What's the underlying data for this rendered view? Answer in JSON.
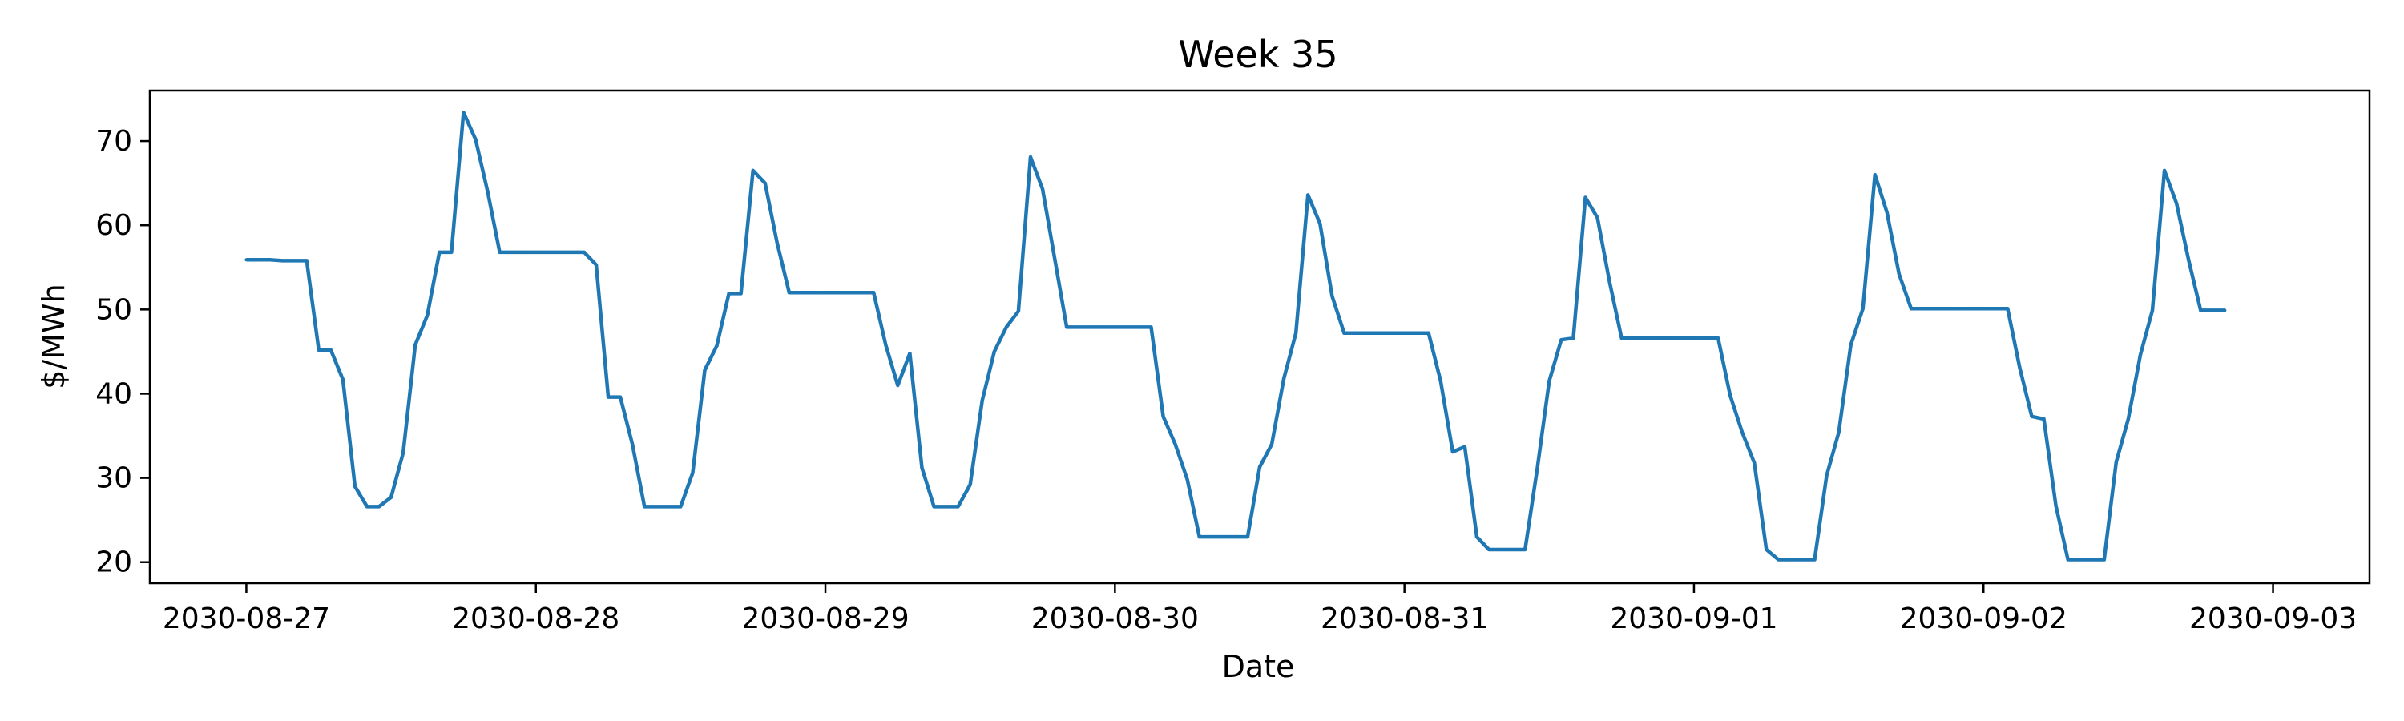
{
  "chart_data": {
    "type": "line",
    "title": "Week 35",
    "xlabel": "Date",
    "ylabel": "$/MWh",
    "x_start": "2030-08-27 00:00",
    "x_step_hours": 1,
    "xlim": [
      "2030-08-26 16:00",
      "2030-09-03 08:00"
    ],
    "ylim": [
      17.5,
      76
    ],
    "yticks": [
      20,
      30,
      40,
      50,
      60,
      70
    ],
    "ytick_labels": [
      "20",
      "30",
      "40",
      "50",
      "60",
      "70"
    ],
    "xticks": [
      "2030-08-27",
      "2030-08-28",
      "2030-08-29",
      "2030-08-30",
      "2030-08-31",
      "2030-09-01",
      "2030-09-02",
      "2030-09-03"
    ],
    "xtick_labels": [
      "2030-08-27",
      "2030-08-28",
      "2030-08-29",
      "2030-08-30",
      "2030-08-31",
      "2030-09-01",
      "2030-09-02",
      "2030-09-03"
    ],
    "grid": false,
    "legend": "none",
    "series": [
      {
        "color": "#1f77b4",
        "values": [
          55.9,
          55.9,
          55.9,
          55.8,
          55.8,
          55.8,
          45.2,
          45.2,
          41.7,
          29.0,
          26.6,
          26.6,
          27.7,
          33.0,
          45.8,
          49.3,
          56.8,
          56.8,
          73.4,
          70.2,
          64.0,
          56.8,
          56.8,
          56.8,
          56.8,
          56.8,
          56.8,
          56.8,
          56.8,
          55.3,
          39.6,
          39.6,
          34.0,
          26.6,
          26.6,
          26.6,
          26.6,
          30.6,
          42.8,
          45.7,
          51.9,
          51.9,
          66.5,
          65.0,
          57.9,
          52.0,
          52.0,
          52.0,
          52.0,
          52.0,
          52.0,
          52.0,
          52.0,
          45.8,
          41.0,
          44.8,
          31.2,
          26.6,
          26.6,
          26.6,
          29.2,
          39.2,
          45.0,
          47.9,
          49.8,
          68.1,
          64.3,
          56.1,
          47.9,
          47.9,
          47.9,
          47.9,
          47.9,
          47.9,
          47.9,
          47.9,
          37.3,
          34.0,
          29.8,
          23.0,
          23.0,
          23.0,
          23.0,
          23.0,
          31.3,
          34.0,
          41.8,
          47.2,
          63.6,
          60.2,
          51.6,
          47.2,
          47.2,
          47.2,
          47.2,
          47.2,
          47.2,
          47.2,
          47.2,
          41.5,
          33.1,
          33.7,
          23.0,
          21.5,
          21.5,
          21.5,
          21.5,
          31.0,
          41.5,
          46.4,
          46.6,
          63.3,
          60.9,
          53.3,
          46.6,
          46.6,
          46.6,
          46.6,
          46.6,
          46.6,
          46.6,
          46.6,
          46.6,
          39.8,
          35.4,
          31.8,
          21.5,
          20.3,
          20.3,
          20.3,
          20.3,
          30.3,
          35.4,
          45.8,
          50.1,
          66.0,
          61.5,
          54.2,
          50.1,
          50.1,
          50.1,
          50.1,
          50.1,
          50.1,
          50.1,
          50.1,
          50.1,
          43.1,
          37.3,
          37.0,
          26.7,
          20.3,
          20.3,
          20.3,
          20.3,
          31.9,
          37.0,
          44.6,
          49.9,
          66.5,
          62.6,
          55.9,
          49.9,
          49.9,
          49.9
        ]
      }
    ]
  }
}
